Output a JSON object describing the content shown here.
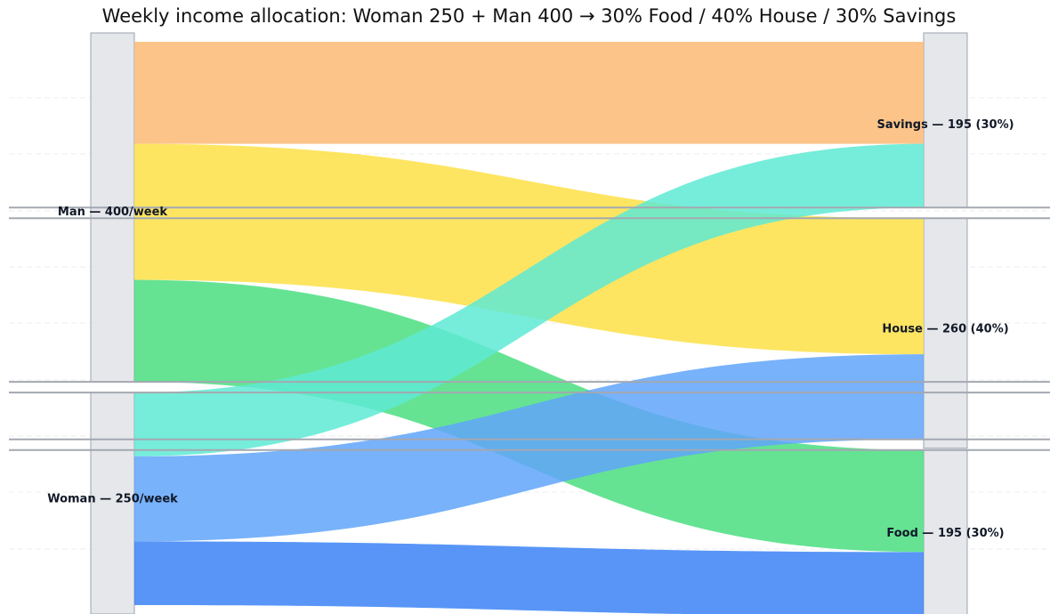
{
  "chart_data": {
    "type": "sankey",
    "title": "Weekly income allocation: Woman 250 + Man 400 → 30% Food / 40% House / 30% Savings",
    "unit": "per week",
    "sources": [
      {
        "id": "man",
        "label": "Man — 400/week",
        "value": 400
      },
      {
        "id": "woman",
        "label": "Woman — 250/week",
        "value": 250
      }
    ],
    "targets": [
      {
        "id": "savings",
        "label": "Savings — 195 (30%)",
        "value": 195
      },
      {
        "id": "house",
        "label": "House — 260 (40%)",
        "value": 260
      },
      {
        "id": "food",
        "label": "Food — 195 (30%)",
        "value": 195
      }
    ],
    "flows": [
      {
        "source": "man",
        "target": "savings",
        "value": 120,
        "color": "#fdba74"
      },
      {
        "source": "man",
        "target": "house",
        "value": 160,
        "color": "#fde047"
      },
      {
        "source": "man",
        "target": "food",
        "value": 120,
        "color": "#4ade80"
      },
      {
        "source": "woman",
        "target": "savings",
        "value": 75,
        "color": "#5eead4"
      },
      {
        "source": "woman",
        "target": "house",
        "value": 100,
        "color": "#60a5fa"
      },
      {
        "source": "woman",
        "target": "food",
        "value": 75,
        "color": "#3b82f6"
      }
    ],
    "colors": {
      "node_fill": "#e5e7eb",
      "node_stroke": "#9ca3af",
      "label": "#111827"
    }
  }
}
